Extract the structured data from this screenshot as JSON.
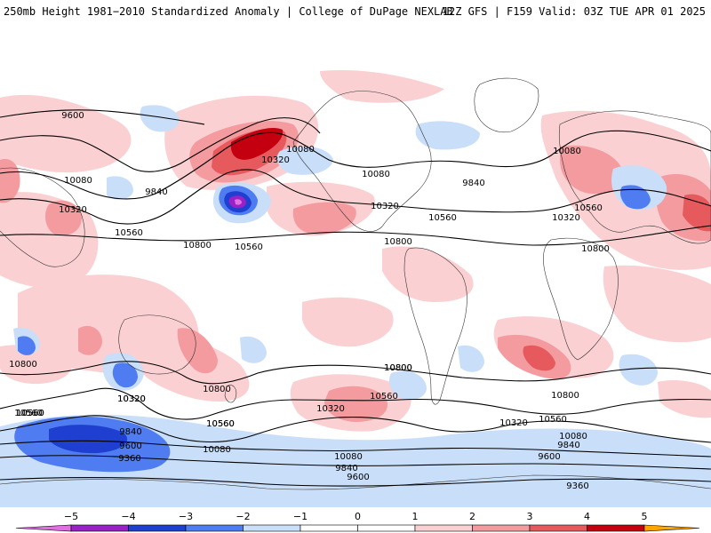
{
  "header": {
    "left_title": "250mb Height 1981−2010 Standardized Anomaly | College of DuPage NEXLAB",
    "right_title": "12Z GFS | F159 Valid: 03Z TUE APR 01 2025"
  },
  "colors": {
    "neg5": "#e070e0",
    "neg4": "#9a20c8",
    "neg3": "#1e3fcf",
    "neg2": "#4f7cf0",
    "neg1": "#c9def8",
    "zero": "#ffffff",
    "pos1": "#fbd0d2",
    "pos2": "#f49b9f",
    "pos3": "#e65a5e",
    "pos4": "#c40010",
    "pos5": "#ffa500",
    "contour": "#000000",
    "land_outline": "#333333"
  },
  "colorbar": {
    "ticks": [
      "−5",
      "−4",
      "−3",
      "−2",
      "−1",
      "0",
      "1",
      "2",
      "3",
      "4",
      "5"
    ]
  },
  "contour_labels": [
    "9600",
    "10080",
    "10320",
    "9840",
    "10080",
    "10560",
    "10800",
    "10560",
    "10320",
    "10080",
    "9840",
    "10320",
    "10560",
    "10800",
    "10080",
    "10560",
    "10320",
    "10800",
    "10800",
    "10560",
    "10800",
    "10320",
    "10800",
    "10560",
    "10560",
    "10320",
    "10560",
    "10800",
    "10320",
    "9840",
    "10560",
    "10080",
    "9600",
    "9360",
    "10080",
    "9840",
    "9600",
    "10560",
    "10320",
    "10080",
    "9840",
    "9600",
    "9360",
    "10800",
    "10560"
  ]
}
